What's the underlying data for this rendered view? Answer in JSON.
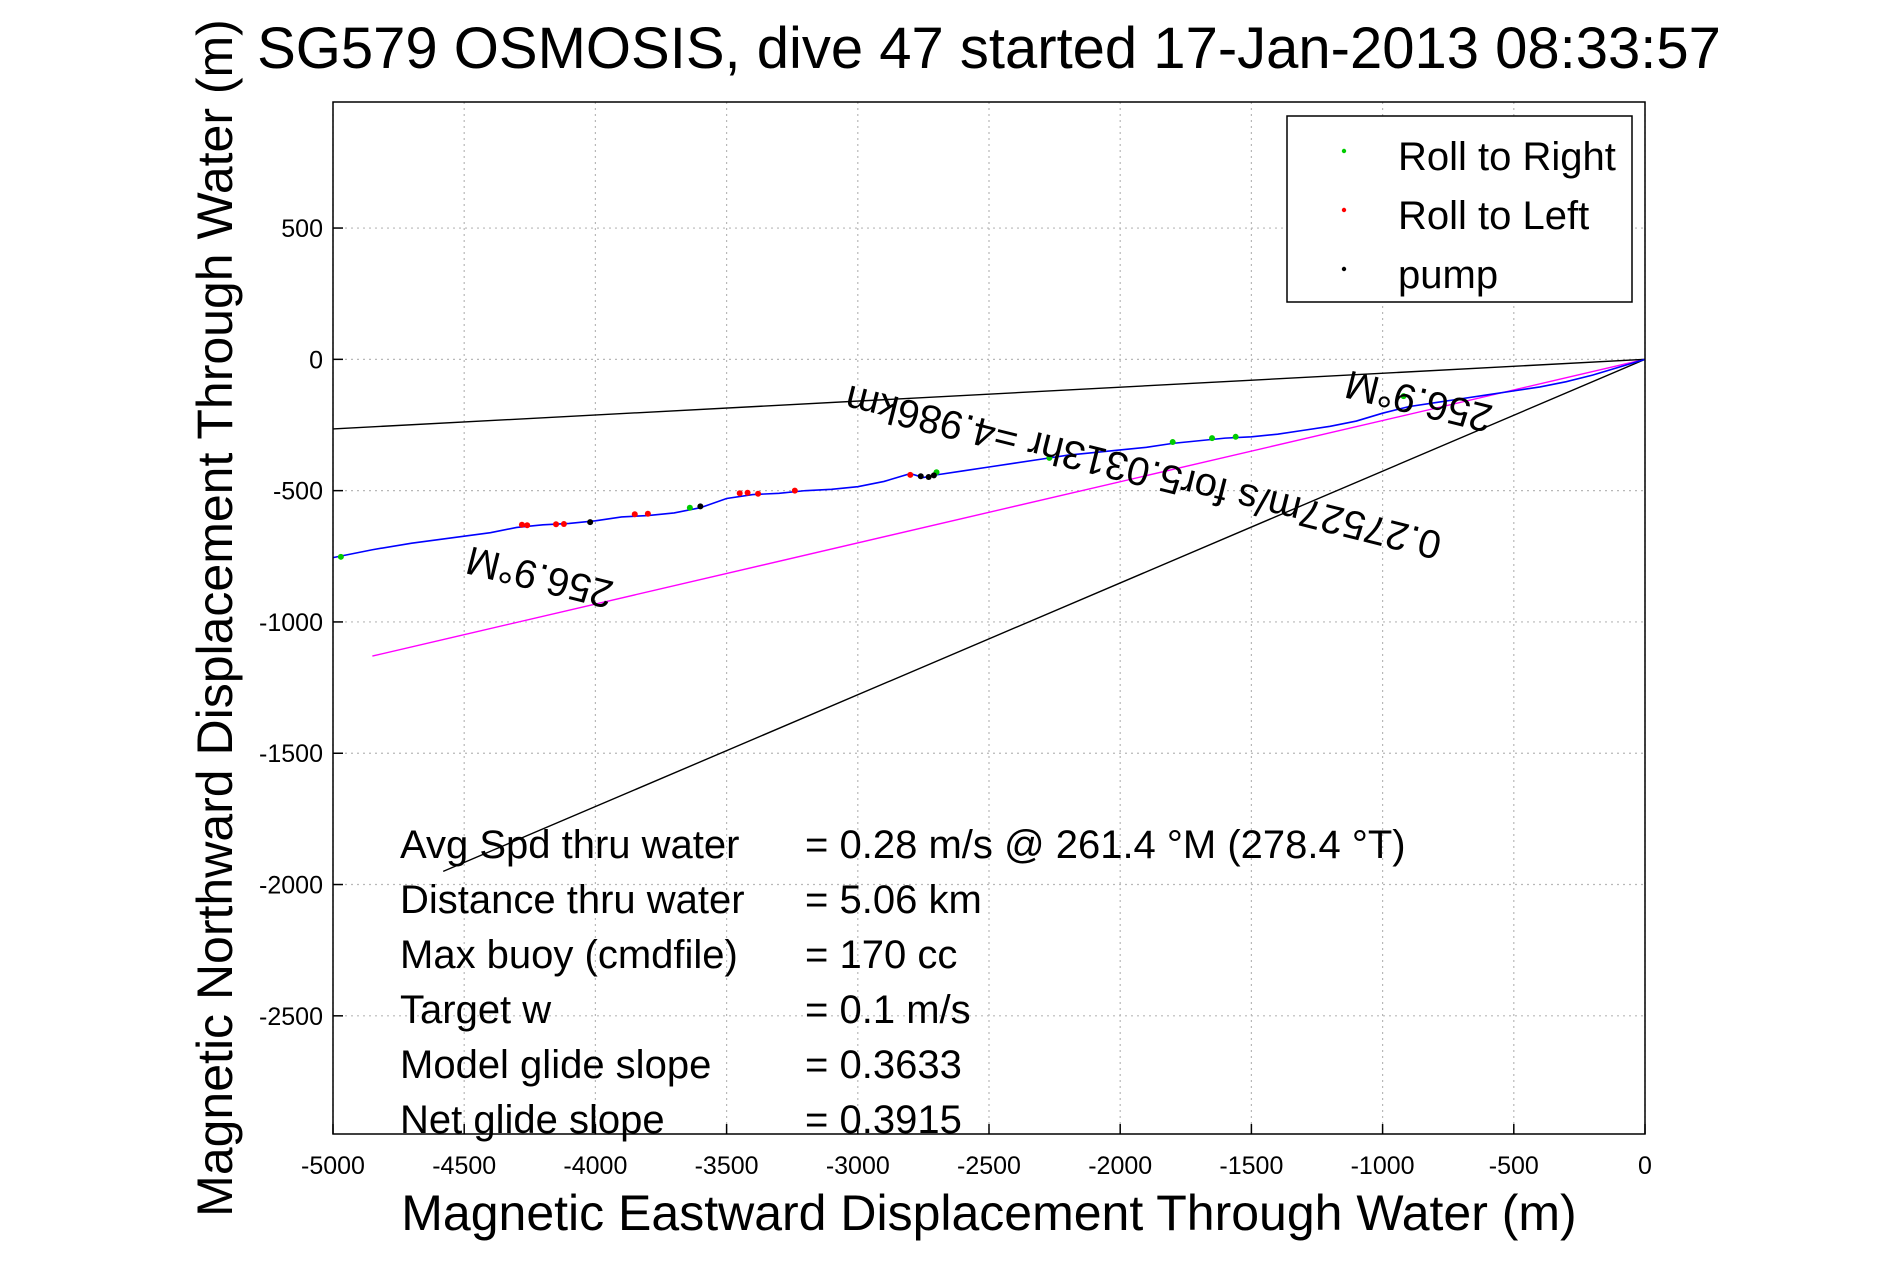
{
  "chart_data": {
    "type": "line",
    "title": "SG579 OSMOSIS, dive 47 started 17-Jan-2013 08:33:57",
    "xlabel": "Magnetic Eastward Displacement Through Water (m)",
    "ylabel": "Magnetic Northward Displacement Through Water (m)",
    "xlim": [
      -5000,
      0
    ],
    "ylim": [
      -2950,
      980
    ],
    "xticks": [
      -5000,
      -4500,
      -4000,
      -3500,
      -3000,
      -2500,
      -2000,
      -1500,
      -1000,
      -500,
      0
    ],
    "yticks": [
      -2500,
      -2000,
      -1500,
      -1000,
      -500,
      0,
      500
    ],
    "grid": true,
    "legend_position": "top-right",
    "legend": [
      {
        "label": "Roll to Right",
        "color": "#00cc00"
      },
      {
        "label": "Roll to Left",
        "color": "#ff0000"
      },
      {
        "label": "pump",
        "color": "#000000"
      }
    ],
    "colors": {
      "track": "#0000ff",
      "average_line": "#ff00ff",
      "reference_lines": "#000000",
      "roll_right": "#00cc00",
      "roll_left": "#ff0000",
      "pump": "#000000"
    },
    "series": [
      {
        "name": "track",
        "x": [
          -5000,
          -4850,
          -4700,
          -4550,
          -4400,
          -4300,
          -4200,
          -4100,
          -4000,
          -3900,
          -3800,
          -3700,
          -3600,
          -3500,
          -3400,
          -3300,
          -3200,
          -3100,
          -3000,
          -2900,
          -2800,
          -2750,
          -2700,
          -2600,
          -2500,
          -2400,
          -2300,
          -2200,
          -2100,
          -2000,
          -1900,
          -1800,
          -1700,
          -1600,
          -1500,
          -1400,
          -1300,
          -1200,
          -1100,
          -1000,
          -900,
          -800,
          -700,
          -600,
          -500,
          -400,
          -300,
          -200,
          -100,
          0
        ],
        "y": [
          -755,
          -725,
          -700,
          -680,
          -660,
          -640,
          -630,
          -625,
          -615,
          -600,
          -595,
          -585,
          -565,
          -530,
          -515,
          -510,
          -500,
          -495,
          -485,
          -465,
          -435,
          -450,
          -440,
          -425,
          -410,
          -395,
          -380,
          -365,
          -355,
          -345,
          -335,
          -320,
          -310,
          -300,
          -295,
          -285,
          -270,
          -255,
          -235,
          -205,
          -180,
          -165,
          -150,
          -135,
          -120,
          -105,
          -85,
          -60,
          -30,
          0
        ]
      },
      {
        "name": "average",
        "x": [
          -4850,
          0
        ],
        "y": [
          -1130,
          0
        ]
      },
      {
        "name": "reference-upper",
        "x": [
          -5000,
          0
        ],
        "y": [
          -265,
          0
        ]
      },
      {
        "name": "reference-lower",
        "x": [
          -4580,
          0
        ],
        "y": [
          -1950,
          0
        ]
      }
    ],
    "markers": {
      "roll_right": {
        "x": [
          -4970,
          -3640,
          -2700,
          -2270,
          -1800,
          -1650,
          -1560,
          -920
        ],
        "y": [
          -752,
          -565,
          -430,
          -375,
          -315,
          -300,
          -295,
          -140
        ]
      },
      "roll_left": {
        "x": [
          -4280,
          -4260,
          -4150,
          -4120,
          -3850,
          -3800,
          -3450,
          -3420,
          -3380,
          -3240,
          -2800
        ],
        "y": [
          -630,
          -632,
          -628,
          -627,
          -590,
          -588,
          -510,
          -508,
          -512,
          -500,
          -440
        ]
      },
      "pump": {
        "x": [
          -4020,
          -3600,
          -2760,
          -2730,
          -2710
        ],
        "y": [
          -620,
          -560,
          -445,
          -448,
          -442
        ]
      }
    },
    "annotations": [
      {
        "text": "256.9°M",
        "x": -4200,
        "y": -780,
        "rotation_deg": 194
      },
      {
        "text": "256.9°M",
        "x": -850,
        "y": -110,
        "rotation_deg": 194
      },
      {
        "text": "0.27527m/s for5.0313hr =4.986km",
        "x": -1900,
        "y": -380,
        "rotation_deg": 194
      }
    ],
    "stats": [
      {
        "label": "Avg Spd thru water",
        "value": "=  0.28 m/s @ 261.4 °M (278.4 °T)"
      },
      {
        "label": "Distance thru water",
        "value": "=  5.06 km"
      },
      {
        "label": "Max buoy (cmdfile)",
        "value": "= 170 cc"
      },
      {
        "label": "Target w",
        "value": "= 0.1 m/s"
      },
      {
        "label": "Model glide slope",
        "value": "= 0.3633"
      },
      {
        "label": "Net glide slope",
        "value": "= 0.3915"
      }
    ]
  }
}
